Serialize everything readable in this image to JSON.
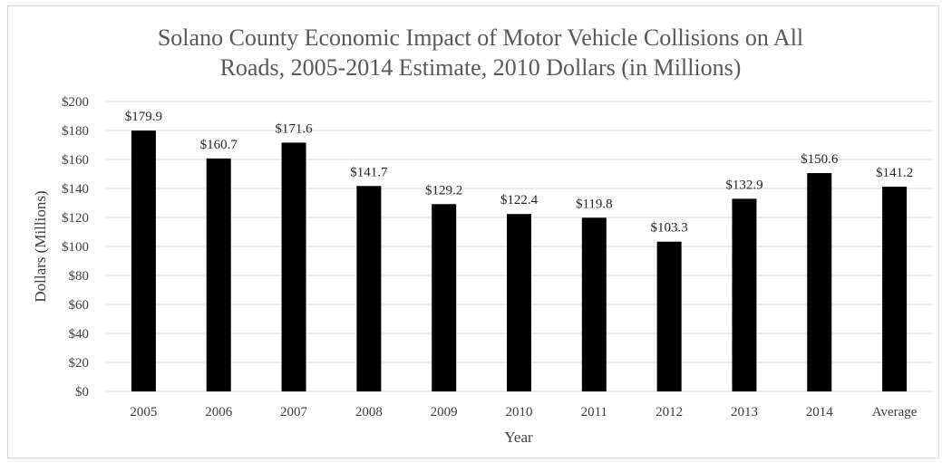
{
  "chart_data": {
    "type": "bar",
    "title": [
      "Solano County Economic Impact of Motor Vehicle Collisions on All",
      "Roads, 2005-2014 Estimate, 2010 Dollars (in Millions)"
    ],
    "xlabel": "Year",
    "ylabel": "Dollars (Millions)",
    "categories": [
      "2005",
      "2006",
      "2007",
      "2008",
      "2009",
      "2010",
      "2011",
      "2012",
      "2013",
      "2014",
      "Average"
    ],
    "values": [
      179.9,
      160.7,
      171.6,
      141.7,
      129.2,
      122.4,
      119.8,
      103.3,
      132.9,
      150.6,
      141.2
    ],
    "data_labels": [
      "$179.9",
      "$160.7",
      "$171.6",
      "$141.7",
      "$129.2",
      "$122.4",
      "$119.8",
      "$103.3",
      "$132.9",
      "$150.6",
      "$141.2"
    ],
    "y_ticks": [
      0,
      20,
      40,
      60,
      80,
      100,
      120,
      140,
      160,
      180,
      200
    ],
    "y_tick_labels": [
      "$0",
      "$20",
      "$40",
      "$60",
      "$80",
      "$100",
      "$120",
      "$140",
      "$160",
      "$180",
      "$200"
    ],
    "ylim": [
      0,
      200
    ],
    "grid": true,
    "legend": "none",
    "colors": {
      "bar": "#000000",
      "grid": "#d9d9d9",
      "title": "#595959"
    }
  }
}
